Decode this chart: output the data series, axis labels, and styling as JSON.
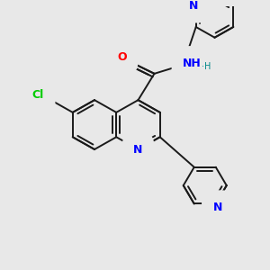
{
  "bg_color": "#e8e8e8",
  "bond_color": "#1a1a1a",
  "N_color": "#0000ff",
  "O_color": "#ff0000",
  "Cl_color": "#00cc00",
  "bond_width": 1.4,
  "figsize": [
    3.0,
    3.0
  ],
  "dpi": 100,
  "xlim": [
    0,
    300
  ],
  "ylim": [
    0,
    300
  ]
}
